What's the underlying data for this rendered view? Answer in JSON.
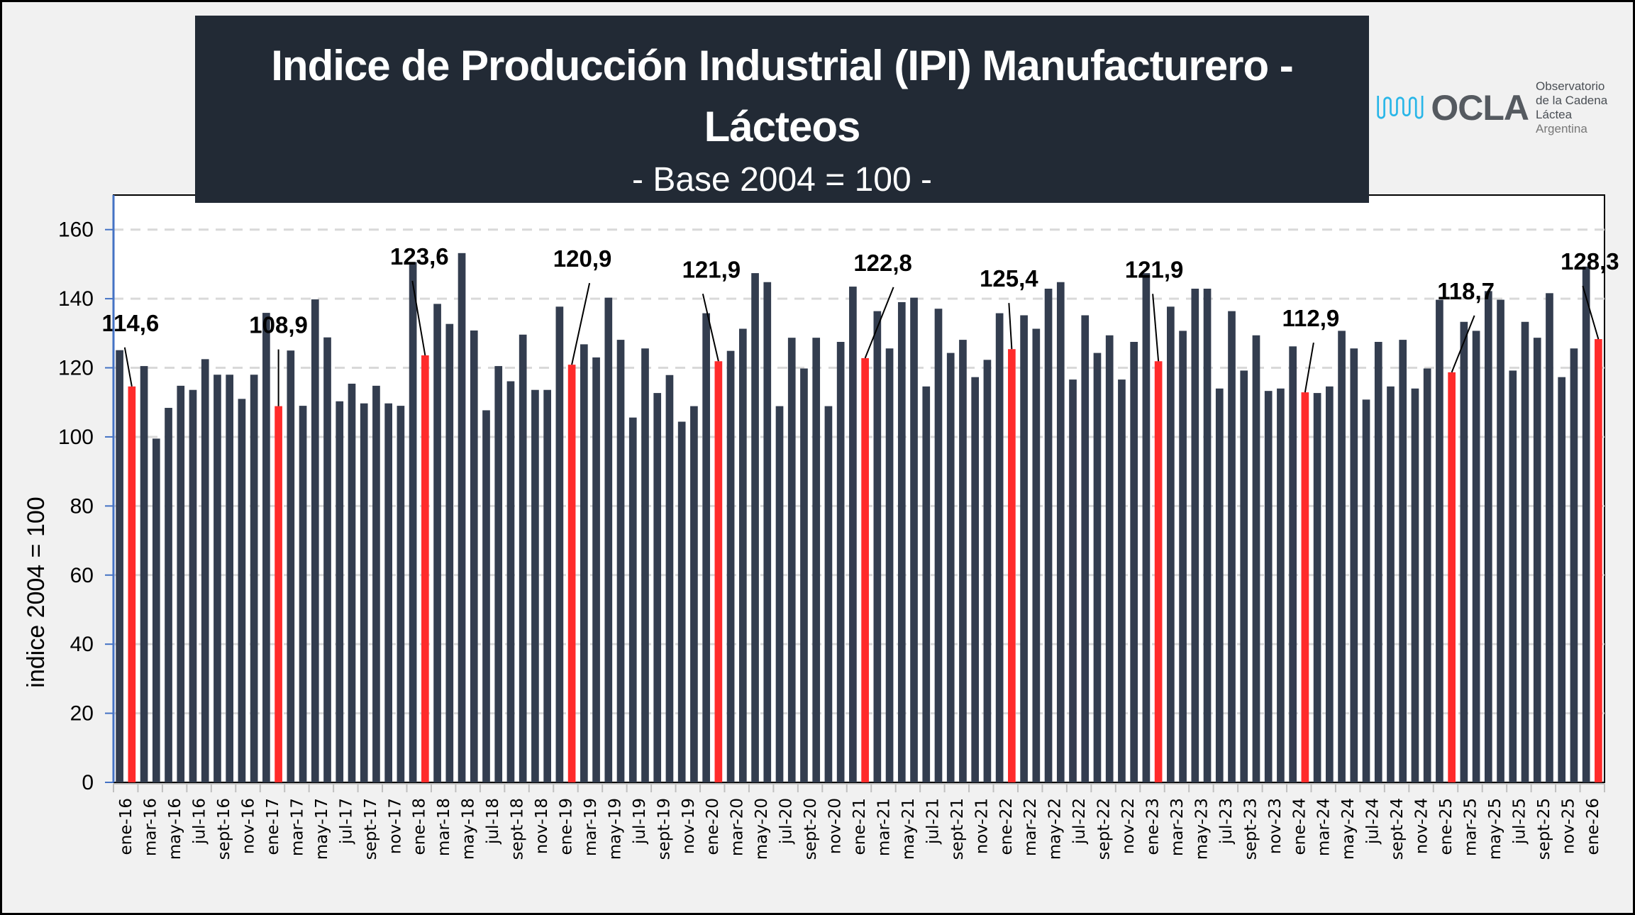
{
  "title": {
    "line1": "Indice de Producción Industrial (IPI) Manufacturero -",
    "line2": "Lácteos",
    "subtitle": "- Base 2004 = 100 -"
  },
  "logo": {
    "name": "OCLA",
    "line1": "Observatorio",
    "line2": "de la Cadena Láctea",
    "line3": "Argentina",
    "wave_color": "#29b6e8"
  },
  "colors": {
    "bar": "#333d4f",
    "highlight": "#ff2b2b",
    "gridline": "#d9d9d9",
    "axis": "#4472c4",
    "title_bg": "#222a35",
    "background": "#f1f1f1"
  },
  "chart_data": {
    "type": "bar",
    "title": "Indice de Producción Industrial (IPI) Manufacturero - Lácteos",
    "subtitle": "- Base 2004 = 100 -",
    "xlabel": "",
    "ylabel": "indice 2004 = 100",
    "ylim": [
      0,
      170
    ],
    "yticks": [
      0,
      20,
      40,
      60,
      80,
      100,
      120,
      140,
      160
    ],
    "grid": true,
    "legend": "none",
    "x_tick_labels": [
      "ene-16",
      "mar-16",
      "may-16",
      "jul-16",
      "sept-16",
      "nov-16",
      "ene-17",
      "mar-17",
      "may-17",
      "jul-17",
      "sept-17",
      "nov-17",
      "ene-18",
      "mar-18",
      "may-18",
      "jul-18",
      "sept-18",
      "nov-18",
      "ene-19",
      "mar-19",
      "may-19",
      "jul-19",
      "sept-19",
      "nov-19",
      "ene-20",
      "mar-20",
      "may-20",
      "jul-20",
      "sept-20",
      "nov-20",
      "ene-21",
      "mar-21",
      "may-21",
      "jul-21",
      "sept-21",
      "nov-21",
      "ene-22",
      "mar-22",
      "may-22",
      "jul-22",
      "sept-22",
      "nov-22",
      "ene-23",
      "mar-23",
      "may-23",
      "jul-23",
      "sept-23",
      "nov-23",
      "ene-24",
      "mar-24",
      "may-24",
      "jul-24",
      "sept-24",
      "nov-24",
      "ene-25",
      "mar-25",
      "may-25",
      "jul-25",
      "sept-25",
      "nov-25",
      "ene-26"
    ],
    "values": [
      125.1,
      114.6,
      120.5,
      99.5,
      108.4,
      114.8,
      113.6,
      122.5,
      118.0,
      118.0,
      111.0,
      118.0,
      135.9,
      108.9,
      125.0,
      109.0,
      139.8,
      128.8,
      110.3,
      115.4,
      109.7,
      114.8,
      109.7,
      109.0,
      150.6,
      123.6,
      138.5,
      132.7,
      153.2,
      130.8,
      107.7,
      120.5,
      116.1,
      129.6,
      113.6,
      113.6,
      137.7,
      120.9,
      126.8,
      123.0,
      140.3,
      128.1,
      105.6,
      125.6,
      112.7,
      117.9,
      104.4,
      108.9,
      135.8,
      121.9,
      124.9,
      131.3,
      147.4,
      144.8,
      108.9,
      128.7,
      119.8,
      128.7,
      108.9,
      127.5,
      143.5,
      122.8,
      136.4,
      125.6,
      139.0,
      140.3,
      114.6,
      137.1,
      124.3,
      128.1,
      117.3,
      122.3,
      135.8,
      125.4,
      135.2,
      131.3,
      142.9,
      144.8,
      116.6,
      135.2,
      124.3,
      129.4,
      116.6,
      127.5,
      147.4,
      121.9,
      137.7,
      130.7,
      142.9,
      142.9,
      114.0,
      136.4,
      119.2,
      129.4,
      113.3,
      114.0,
      126.2,
      112.9,
      112.7,
      114.6,
      130.7,
      125.6,
      110.8,
      127.5,
      114.6,
      128.1,
      114.0,
      119.8,
      139.7,
      118.7,
      133.3,
      130.7,
      142.2,
      139.7,
      119.2,
      133.3,
      128.7,
      141.6,
      117.3,
      125.6,
      149.3,
      128.3
    ],
    "highlighted_indices": [
      1,
      13,
      25,
      37,
      49,
      61,
      73,
      85,
      97,
      109,
      121
    ],
    "data_labels": [
      {
        "index": 1,
        "text": "114,6"
      },
      {
        "index": 13,
        "text": "108,9"
      },
      {
        "index": 25,
        "text": "123,6"
      },
      {
        "index": 37,
        "text": "120,9"
      },
      {
        "index": 49,
        "text": "121,9"
      },
      {
        "index": 61,
        "text": "122,8"
      },
      {
        "index": 73,
        "text": "125,4"
      },
      {
        "index": 85,
        "text": "121,9"
      },
      {
        "index": 97,
        "text": "112,9"
      },
      {
        "index": 109,
        "text": "118,7"
      },
      {
        "index": 121,
        "text": "128,3"
      }
    ]
  }
}
